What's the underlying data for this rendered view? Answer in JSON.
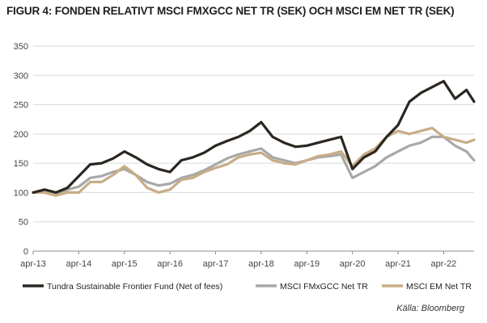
{
  "title": "FIGUR 4: FONDEN RELATIVT MSCI FMXGCC NET TR (SEK) OCH MSCI EM NET TR (SEK)",
  "source": "Källa: Bloomberg",
  "chart_data": {
    "type": "line",
    "title": "FIGUR 4: FONDEN RELATIVT MSCI FMXGCC NET TR (SEK) OCH MSCI EM NET TR (SEK)",
    "xlabel": "",
    "ylabel": "",
    "ylim": [
      0,
      350
    ],
    "yticks": [
      0,
      50,
      100,
      150,
      200,
      250,
      300,
      350
    ],
    "xlim": [
      "2013-04",
      "2022-12"
    ],
    "xtick_labels": [
      "apr-13",
      "apr-14",
      "apr-15",
      "apr-16",
      "apr-17",
      "apr-18",
      "apr-19",
      "apr-20",
      "apr-21",
      "apr-22"
    ],
    "xtick_dates": [
      "2013-04",
      "2014-04",
      "2015-04",
      "2016-04",
      "2017-04",
      "2018-04",
      "2019-04",
      "2020-04",
      "2021-04",
      "2022-04"
    ],
    "grid": "horizontal",
    "legend_position": "bottom",
    "x": [
      "2013-04",
      "2013-07",
      "2013-10",
      "2014-01",
      "2014-04",
      "2014-07",
      "2014-10",
      "2015-01",
      "2015-04",
      "2015-07",
      "2015-10",
      "2016-01",
      "2016-04",
      "2016-07",
      "2016-10",
      "2017-01",
      "2017-04",
      "2017-07",
      "2017-10",
      "2018-01",
      "2018-04",
      "2018-07",
      "2018-10",
      "2019-01",
      "2019-04",
      "2019-07",
      "2019-10",
      "2020-01",
      "2020-04",
      "2020-07",
      "2020-10",
      "2021-01",
      "2021-04",
      "2021-07",
      "2021-10",
      "2022-01",
      "2022-04",
      "2022-07",
      "2022-10",
      "2022-12"
    ],
    "series": [
      {
        "name": "Tundra Sustainable Frontier Fund (Net of fees)",
        "color": "#2b2620",
        "values": [
          100,
          105,
          100,
          108,
          128,
          148,
          150,
          158,
          170,
          160,
          148,
          140,
          135,
          155,
          160,
          168,
          180,
          188,
          195,
          205,
          220,
          195,
          185,
          178,
          180,
          185,
          190,
          195,
          140,
          160,
          170,
          195,
          215,
          255,
          270,
          280,
          290,
          260,
          275,
          255
        ]
      },
      {
        "name": "MSCI FMxGCC  Net TR",
        "color": "#a8a8a8",
        "values": [
          100,
          100,
          95,
          105,
          110,
          125,
          128,
          135,
          140,
          130,
          118,
          112,
          115,
          125,
          130,
          138,
          148,
          158,
          165,
          170,
          175,
          160,
          155,
          150,
          155,
          160,
          162,
          165,
          125,
          135,
          145,
          160,
          170,
          180,
          185,
          195,
          195,
          180,
          170,
          155
        ]
      },
      {
        "name": "MSCI EM Net TR",
        "color": "#c8ad86",
        "values": [
          100,
          100,
          95,
          100,
          100,
          118,
          118,
          130,
          145,
          130,
          108,
          100,
          105,
          122,
          125,
          135,
          142,
          148,
          160,
          165,
          168,
          155,
          150,
          148,
          155,
          162,
          165,
          170,
          145,
          165,
          175,
          195,
          205,
          200,
          205,
          210,
          195,
          190,
          185,
          190
        ]
      }
    ]
  }
}
